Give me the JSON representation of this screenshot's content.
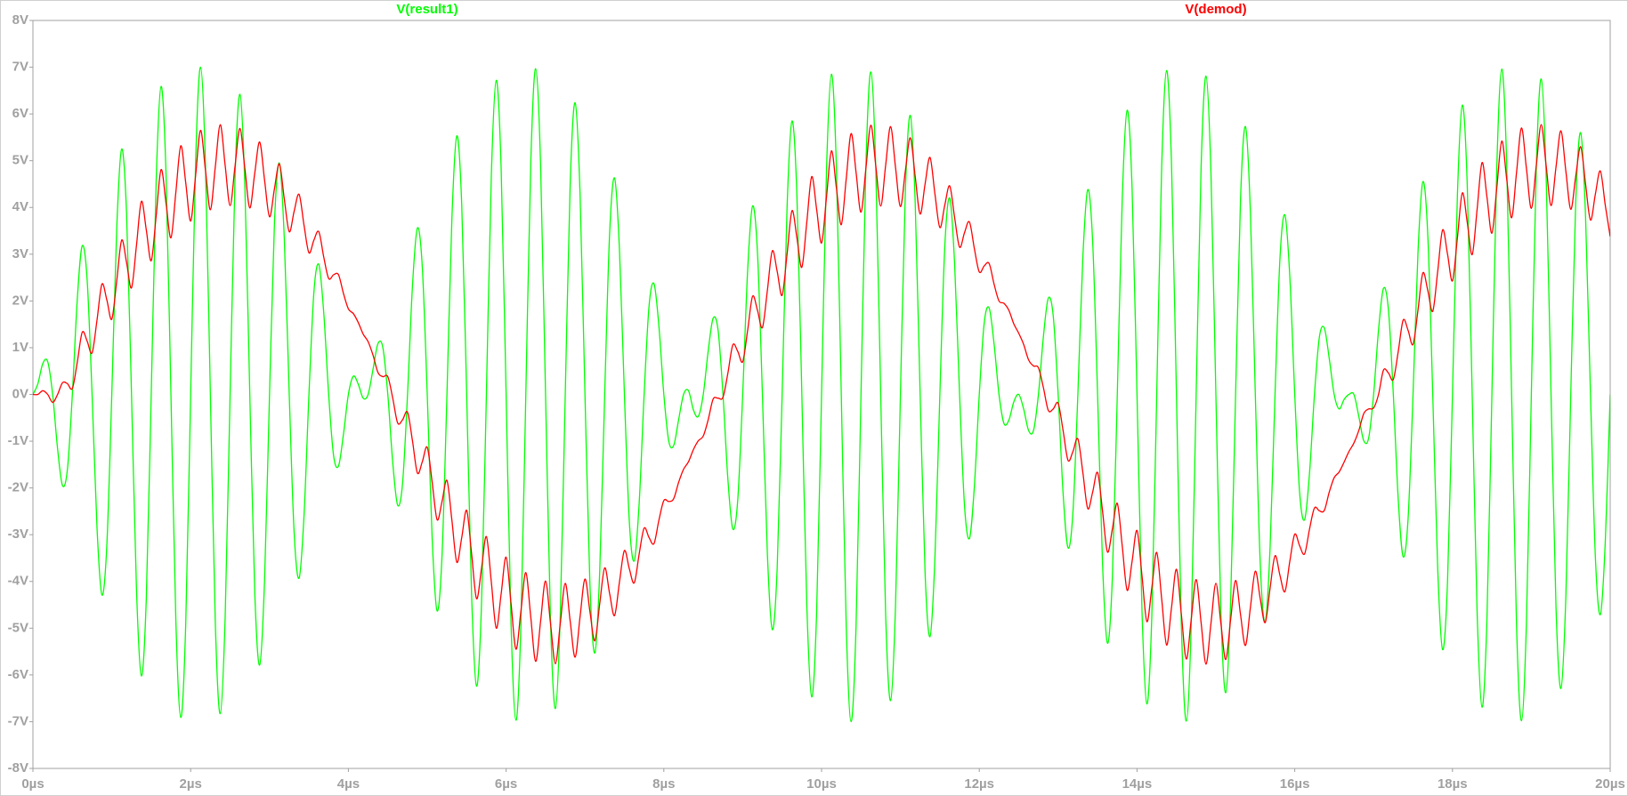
{
  "chart_data": {
    "type": "line",
    "x": [
      0,
      0.0625,
      0.125,
      0.1875,
      0.25,
      0.3125,
      0.375,
      0.4375,
      0.5,
      0.5625,
      0.625,
      0.6875,
      0.75,
      0.8125,
      0.875,
      0.9375,
      1,
      1.0625,
      1.125,
      1.1875,
      1.25,
      1.3125,
      1.375,
      1.4375,
      1.5,
      1.5625,
      1.625,
      1.6875,
      1.75,
      1.8125,
      1.875,
      1.9375,
      2,
      2.0625,
      2.125,
      2.1875,
      2.25,
      2.3125,
      2.375,
      2.4375,
      2.5,
      2.5625,
      2.625,
      2.6875,
      2.75,
      2.8125,
      2.875,
      2.9375,
      3,
      3.0625,
      3.125,
      3.1875,
      3.25,
      3.3125,
      3.375,
      3.4375,
      3.5,
      3.5625,
      3.625,
      3.6875,
      3.75,
      3.8125,
      3.875,
      3.9375,
      4,
      4.0625,
      4.125,
      4.1875,
      4.25,
      4.3125,
      4.375,
      4.4375,
      4.5,
      4.5625,
      4.625,
      4.6875,
      4.75,
      4.8125,
      4.875,
      4.9375,
      5,
      5.0625,
      5.125,
      5.1875,
      5.25,
      5.3125,
      5.375,
      5.4375,
      5.5,
      5.5625,
      5.625,
      5.6875,
      5.75,
      5.8125,
      5.875,
      5.9375,
      6,
      6.0625,
      6.125,
      6.1875,
      6.25,
      6.3125,
      6.375,
      6.4375,
      6.5,
      6.5625,
      6.625,
      6.6875,
      6.75,
      6.8125,
      6.875,
      6.9375,
      7,
      7.0625,
      7.125,
      7.1875,
      7.25,
      7.3125,
      7.375,
      7.4375,
      7.5,
      7.5625,
      7.625,
      7.6875,
      7.75,
      7.8125,
      7.875,
      7.9375,
      8,
      8.0625,
      8.125,
      8.1875,
      8.25,
      8.3125,
      8.375,
      8.4375,
      8.5,
      8.5625,
      8.625,
      8.6875,
      8.75,
      8.8125,
      8.875,
      8.9375,
      9,
      9.0625,
      9.125,
      9.1875,
      9.25,
      9.3125,
      9.375,
      9.4375,
      9.5,
      9.5625,
      9.625,
      9.6875,
      9.75,
      9.8125,
      9.875,
      9.9375,
      10,
      10.0625,
      10.125,
      10.1875,
      10.25,
      10.3125,
      10.375,
      10.4375,
      10.5,
      10.5625,
      10.625,
      10.6875,
      10.75,
      10.8125,
      10.875,
      10.9375,
      11,
      11.0625,
      11.125,
      11.1875,
      11.25,
      11.3125,
      11.375,
      11.4375,
      11.5,
      11.5625,
      11.625,
      11.6875,
      11.75,
      11.8125,
      11.875,
      11.9375,
      12,
      12.0625,
      12.125,
      12.1875,
      12.25,
      12.3125,
      12.375,
      12.4375,
      12.5,
      12.5625,
      12.625,
      12.6875,
      12.75,
      12.8125,
      12.875,
      12.9375,
      13,
      13.0625,
      13.125,
      13.1875,
      13.25,
      13.3125,
      13.375,
      13.4375,
      13.5,
      13.5625,
      13.625,
      13.6875,
      13.75,
      13.8125,
      13.875,
      13.9375,
      14,
      14.0625,
      14.125,
      14.1875,
      14.25,
      14.3125,
      14.375,
      14.4375,
      14.5,
      14.5625,
      14.625,
      14.6875,
      14.75,
      14.8125,
      14.875,
      14.9375,
      15,
      15.0625,
      15.125,
      15.1875,
      15.25,
      15.3125,
      15.375,
      15.4375,
      15.5,
      15.5625,
      15.625,
      15.6875,
      15.75,
      15.8125,
      15.875,
      15.9375,
      16,
      16.0625,
      16.125,
      16.1875,
      16.25,
      16.3125,
      16.375,
      16.4375,
      16.5,
      16.5625,
      16.625,
      16.6875,
      16.75,
      16.8125,
      16.875,
      16.9375,
      17,
      17.0625,
      17.125,
      17.1875,
      17.25,
      17.3125,
      17.375,
      17.4375,
      17.5,
      17.5625,
      17.625,
      17.6875,
      17.75,
      17.8125,
      17.875,
      17.9375,
      18,
      18.0625,
      18.125,
      18.1875,
      18.25,
      18.3125,
      18.375,
      18.4375,
      18.5,
      18.5625,
      18.625,
      18.6875,
      18.75,
      18.8125,
      18.875,
      18.9375,
      19,
      19.0625,
      19.125,
      19.1875,
      19.25,
      19.3125,
      19.375,
      19.4375,
      19.5,
      19.5625,
      19.625,
      19.6875,
      19.75,
      19.8125,
      19.875,
      19.9375,
      20
    ],
    "xlim": [
      0,
      20
    ],
    "xticks": [
      {
        "value": 0,
        "label": "0µs"
      },
      {
        "value": 2,
        "label": "2µs"
      },
      {
        "value": 4,
        "label": "4µs"
      },
      {
        "value": 6,
        "label": "6µs"
      },
      {
        "value": 8,
        "label": "8µs"
      },
      {
        "value": 10,
        "label": "10µs"
      },
      {
        "value": 12,
        "label": "12µs"
      },
      {
        "value": 14,
        "label": "14µs"
      },
      {
        "value": 16,
        "label": "16µs"
      },
      {
        "value": 18,
        "label": "18µs"
      },
      {
        "value": 20,
        "label": "20µs"
      }
    ],
    "ylim": [
      -8,
      8
    ],
    "yticks": [
      {
        "value": 8,
        "label": "8V"
      },
      {
        "value": 7,
        "label": "7V"
      },
      {
        "value": 6,
        "label": "6V"
      },
      {
        "value": 5,
        "label": "5V"
      },
      {
        "value": 4,
        "label": "4V"
      },
      {
        "value": 3,
        "label": "3V"
      },
      {
        "value": 2,
        "label": "2V"
      },
      {
        "value": 1,
        "label": "1V"
      },
      {
        "value": 0,
        "label": "0V"
      },
      {
        "value": -1,
        "label": "-1V"
      },
      {
        "value": -2,
        "label": "-2V"
      },
      {
        "value": -3,
        "label": "-3V"
      },
      {
        "value": -4,
        "label": "-4V"
      },
      {
        "value": -5,
        "label": "-5V"
      },
      {
        "value": -6,
        "label": "-6V"
      },
      {
        "value": -7,
        "label": "-7V"
      },
      {
        "value": -8,
        "label": "-8V"
      }
    ],
    "grid": false,
    "series": [
      {
        "name": "V(result1)",
        "color": "#00ff00",
        "values": [
          0,
          0.23,
          0.66,
          0.7,
          0,
          -1.16,
          -1.95,
          -1.6,
          0,
          2.04,
          3.18,
          2.45,
          0,
          -2.85,
          -4.29,
          -3.21,
          0,
          3.55,
          5.25,
          3.86,
          0,
          -4.14,
          -6.02,
          -4.37,
          0,
          4.57,
          6.59,
          4.73,
          0,
          -4.85,
          -6.91,
          -4.92,
          0,
          4.95,
          7.0,
          4.93,
          0,
          -4.88,
          -6.83,
          -4.77,
          0,
          4.63,
          6.42,
          4.45,
          0,
          -4.22,
          -5.79,
          -3.96,
          0,
          3.66,
          4.95,
          3.33,
          0,
          -2.97,
          -3.93,
          -2.59,
          0,
          2.18,
          2.78,
          1.75,
          0,
          -1.31,
          -1.53,
          -0.85,
          0,
          0.39,
          0.22,
          -0.08,
          0,
          0.54,
          1.09,
          1.0,
          0,
          -1.46,
          -2.37,
          -1.89,
          0,
          2.32,
          3.56,
          2.72,
          0,
          -3.09,
          -4.63,
          -3.44,
          0,
          3.76,
          5.53,
          4.05,
          0,
          -4.3,
          -6.24,
          -4.51,
          0,
          4.68,
          6.72,
          4.81,
          0,
          -4.9,
          -6.97,
          -4.94,
          0,
          4.94,
          6.97,
          4.9,
          0,
          -4.81,
          -6.72,
          -4.68,
          0,
          4.51,
          6.24,
          4.3,
          0,
          -4.05,
          -5.53,
          -3.76,
          0,
          3.44,
          4.63,
          3.09,
          0,
          -2.72,
          -3.56,
          -2.32,
          0,
          1.89,
          2.37,
          1.46,
          0,
          -1.0,
          -1.09,
          -0.54,
          0,
          0.08,
          -0.33,
          -0.47,
          0,
          0.93,
          1.63,
          1.38,
          0,
          -1.82,
          -2.88,
          -2.25,
          0,
          2.65,
          4.03,
          3.03,
          0,
          -3.39,
          -5.03,
          -3.71,
          0,
          4.0,
          5.85,
          4.26,
          0,
          -4.48,
          -6.47,
          -4.66,
          0,
          4.79,
          6.85,
          4.89,
          0,
          -4.94,
          -7.0,
          -4.95,
          0,
          4.91,
          6.9,
          4.83,
          0,
          -4.71,
          -6.55,
          -4.54,
          0,
          4.34,
          5.97,
          4.09,
          0,
          -3.81,
          -5.18,
          -3.5,
          0,
          3.16,
          4.2,
          2.78,
          0,
          -2.38,
          -3.08,
          -1.97,
          0,
          1.53,
          1.85,
          1.08,
          0,
          -0.62,
          -0.55,
          -0.16,
          0,
          -0.31,
          -0.77,
          -0.77,
          0,
          1.23,
          2.06,
          1.68,
          0,
          -2.11,
          -3.28,
          -2.52,
          0,
          2.91,
          4.38,
          3.27,
          0,
          -3.61,
          -5.32,
          -3.91,
          0,
          4.18,
          6.08,
          4.41,
          0,
          -4.6,
          -6.62,
          -4.75,
          0,
          4.86,
          6.93,
          4.93,
          0,
          -4.95,
          -6.99,
          -4.93,
          0,
          4.86,
          6.81,
          4.75,
          0,
          -4.6,
          -6.38,
          -4.41,
          0,
          4.18,
          5.73,
          3.91,
          0,
          -3.61,
          -4.87,
          -3.27,
          0,
          2.91,
          3.84,
          2.52,
          0,
          -2.11,
          -2.68,
          -1.68,
          0,
          1.23,
          1.42,
          0.77,
          0,
          -0.31,
          -0.11,
          0,
          0,
          -0.47,
          -0.99,
          -0.93,
          0,
          1.38,
          2.27,
          1.82,
          0,
          -2.25,
          -3.47,
          -2.65,
          0,
          3.03,
          4.55,
          3.39,
          0,
          -3.71,
          -5.46,
          -4.0,
          0,
          4.26,
          6.19,
          4.48,
          0,
          -4.66,
          -6.69,
          -4.79,
          0,
          4.89,
          6.96,
          4.94,
          0,
          -4.95,
          -6.98,
          -4.91,
          0,
          4.83,
          6.75,
          4.71,
          0,
          -4.54,
          -6.29,
          -4.34,
          0,
          4.09,
          5.6,
          3.81,
          0,
          -3.5,
          -4.71,
          -3.16,
          0
        ]
      },
      {
        "name": "V(demod)",
        "color": "#ff0000",
        "values": [
          0,
          0,
          0.08,
          0,
          -0.17,
          0,
          0.25,
          0.23,
          0.13,
          0.69,
          1.33,
          1.14,
          0.89,
          1.59,
          2.36,
          2.02,
          1.61,
          2.43,
          3.3,
          2.82,
          2.28,
          3.18,
          4.13,
          3.52,
          2.86,
          3.82,
          4.81,
          4.1,
          3.35,
          4.33,
          5.32,
          4.53,
          3.71,
          4.68,
          5.65,
          4.8,
          3.95,
          4.87,
          5.77,
          4.9,
          4.04,
          4.88,
          5.69,
          4.83,
          3.99,
          4.73,
          5.4,
          4.58,
          3.8,
          4.4,
          4.93,
          4.18,
          3.48,
          3.92,
          4.28,
          3.62,
          3.03,
          3.3,
          3.48,
          2.94,
          2.48,
          2.56,
          2.56,
          2.16,
          1.83,
          1.73,
          1.54,
          1.29,
          1.13,
          0.84,
          0.47,
          0.38,
          0.38,
          -0.08,
          -0.61,
          -0.54,
          -0.38,
          -0.99,
          -1.68,
          -1.44,
          -1.13,
          -1.88,
          -2.68,
          -2.29,
          -1.84,
          -2.69,
          -3.59,
          -3.06,
          -2.48,
          -3.41,
          -4.37,
          -3.73,
          -3.04,
          -4.01,
          -5.0,
          -4.26,
          -3.48,
          -4.47,
          -5.45,
          -4.64,
          -3.81,
          -4.76,
          -5.71,
          -4.85,
          -3.99,
          -4.89,
          -5.76,
          -4.89,
          -4.04,
          -4.85,
          -5.62,
          -4.76,
          -3.95,
          -4.64,
          -5.27,
          -4.47,
          -3.71,
          -4.26,
          -4.73,
          -4.01,
          -3.34,
          -3.73,
          -4.03,
          -3.41,
          -2.86,
          -3.06,
          -3.19,
          -2.69,
          -2.27,
          -2.29,
          -2.23,
          -1.88,
          -1.6,
          -1.44,
          -1.18,
          -0.99,
          -0.89,
          -0.54,
          -0.1,
          -0.08,
          -0.06,
          0.46,
          1.06,
          0.92,
          0.7,
          1.37,
          2.1,
          1.8,
          1.43,
          2.22,
          3.07,
          2.63,
          2.12,
          3.0,
          3.93,
          3.35,
          2.72,
          3.68,
          4.66,
          3.96,
          3.24,
          4.22,
          5.21,
          4.43,
          3.63,
          4.61,
          5.58,
          4.75,
          3.9,
          4.84,
          5.76,
          4.89,
          4.03,
          4.9,
          5.73,
          4.86,
          4.02,
          4.78,
          5.49,
          4.66,
          3.86,
          4.5,
          5.07,
          4.29,
          3.57,
          4.05,
          4.46,
          3.78,
          3.15,
          3.46,
          3.69,
          3.12,
          2.62,
          2.75,
          2.8,
          2.36,
          2.0,
          1.95,
          1.8,
          1.51,
          1.31,
          1.07,
          0.74,
          0.61,
          0.57,
          0.15,
          -0.34,
          -0.31,
          -0.19,
          -0.77,
          -1.41,
          -1.22,
          -0.95,
          -1.66,
          -2.44,
          -2.09,
          -1.67,
          -2.49,
          -3.37,
          -2.88,
          -2.33,
          -3.24,
          -4.19,
          -3.57,
          -2.91,
          -3.87,
          -4.86,
          -4.14,
          -3.38,
          -4.37,
          -5.36,
          -4.56,
          -3.74,
          -4.71,
          -5.66,
          -4.81,
          -3.96,
          -4.88,
          -5.77,
          -4.9,
          -4.04,
          -4.88,
          -5.67,
          -4.81,
          -3.98,
          -4.71,
          -5.37,
          -4.56,
          -3.78,
          -4.37,
          -4.88,
          -4.14,
          -3.45,
          -3.87,
          -4.22,
          -3.57,
          -2.99,
          -3.24,
          -3.41,
          -2.88,
          -2.43,
          -2.49,
          -2.48,
          -2.09,
          -1.78,
          -1.66,
          -1.45,
          -1.22,
          -1.04,
          -0.77,
          -0.41,
          -0.31,
          -0.29,
          0,
          0.52,
          0.46,
          0.32,
          0.92,
          1.59,
          1.37,
          1.07,
          1.8,
          2.6,
          2.22,
          1.78,
          2.63,
          3.52,
          3.0,
          2.43,
          3.35,
          4.31,
          3.68,
          2.99,
          3.96,
          4.96,
          4.22,
          3.45,
          4.43,
          5.42,
          4.61,
          3.78,
          4.75,
          5.7,
          4.84,
          3.98,
          4.89,
          5.77,
          4.9,
          4.04,
          4.86,
          5.64,
          4.78,
          3.96,
          4.66,
          5.3,
          4.5,
          3.73,
          4.29,
          4.78,
          4.05,
          3.38
        ]
      }
    ]
  }
}
